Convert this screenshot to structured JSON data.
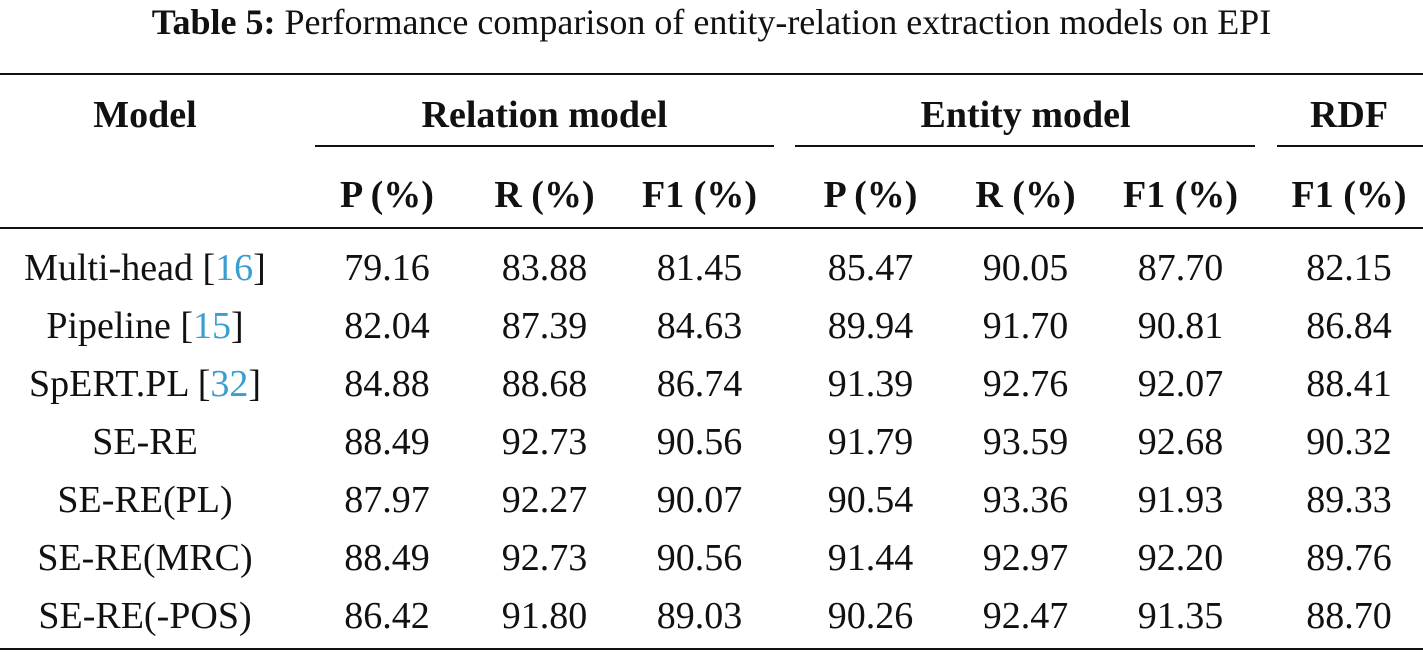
{
  "caption": {
    "label": "Table 5:",
    "text": "Performance comparison of entity-relation extraction models on EPI"
  },
  "header": {
    "model": "Model",
    "groups": [
      "Relation model",
      "Entity model",
      "RDF"
    ],
    "metrics": [
      "P (%)",
      "R (%)",
      "F1 (%)",
      "P (%)",
      "R (%)",
      "F1 (%)",
      "F1 (%)"
    ]
  },
  "rows": [
    {
      "name": "Multi-head",
      "ref": "16",
      "values": [
        "79.16",
        "83.88",
        "81.45",
        "85.47",
        "90.05",
        "87.70",
        "82.15"
      ]
    },
    {
      "name": "Pipeline",
      "ref": "15",
      "values": [
        "82.04",
        "87.39",
        "84.63",
        "89.94",
        "91.70",
        "90.81",
        "86.84"
      ]
    },
    {
      "name": "SpERT.PL",
      "ref": "32",
      "values": [
        "84.88",
        "88.68",
        "86.74",
        "91.39",
        "92.76",
        "92.07",
        "88.41"
      ]
    },
    {
      "name": "SE-RE",
      "ref": "",
      "values": [
        "88.49",
        "92.73",
        "90.56",
        "91.79",
        "93.59",
        "92.68",
        "90.32"
      ]
    },
    {
      "name": "SE-RE(PL)",
      "ref": "",
      "values": [
        "87.97",
        "92.27",
        "90.07",
        "90.54",
        "93.36",
        "91.93",
        "89.33"
      ]
    },
    {
      "name": "SE-RE(MRC)",
      "ref": "",
      "values": [
        "88.49",
        "92.73",
        "90.56",
        "91.44",
        "92.97",
        "92.20",
        "89.76"
      ]
    },
    {
      "name": "SE-RE(-POS)",
      "ref": "",
      "values": [
        "86.42",
        "91.80",
        "89.03",
        "90.26",
        "92.47",
        "91.35",
        "88.70"
      ]
    }
  ]
}
